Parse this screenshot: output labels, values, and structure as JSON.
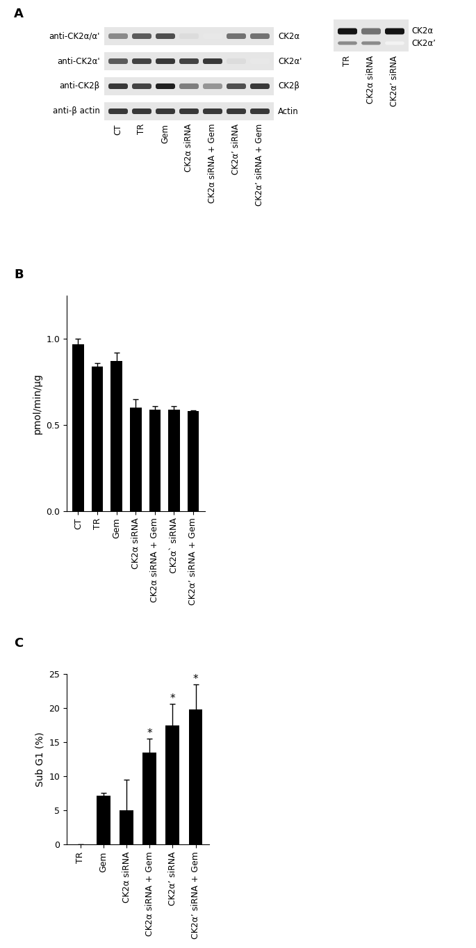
{
  "panel_labels": [
    "A",
    "B",
    "C"
  ],
  "blot_left": {
    "rows": [
      {
        "antibody": "anti-CK2α/α'",
        "band": "CK2α",
        "intensity": [
          0.5,
          0.7,
          0.75,
          0.15,
          0.1,
          0.6,
          0.6
        ]
      },
      {
        "antibody": "anti-CK2α'",
        "band": "CK2α'",
        "intensity": [
          0.7,
          0.8,
          0.85,
          0.8,
          0.85,
          0.15,
          0.1
        ]
      },
      {
        "antibody": "anti-CK2β",
        "band": "CK2β",
        "intensity": [
          0.85,
          0.8,
          0.95,
          0.55,
          0.45,
          0.75,
          0.85
        ]
      },
      {
        "antibody": "anti-β actin",
        "band": "Actin",
        "intensity": [
          0.85,
          0.85,
          0.85,
          0.85,
          0.85,
          0.85,
          0.85
        ]
      }
    ],
    "lanes": [
      "CT",
      "TR",
      "Gem",
      "CK2α siRNA",
      "CK2α siRNA + Gem",
      "CK2α’ siRNA",
      "CK2α’ siRNA + Gem"
    ]
  },
  "blot_right": {
    "lanes": [
      "TR",
      "CK2α siRNA",
      "CK2α’ siRNA"
    ],
    "bands": [
      {
        "band": "CK2α",
        "intensity": [
          1.0,
          0.6,
          1.0
        ]
      },
      {
        "band": "CK2α’",
        "intensity": [
          0.5,
          0.5,
          0.05
        ]
      }
    ]
  },
  "chart_data": [
    {
      "type": "bar",
      "y_label": "pmol/min/μg",
      "categories": [
        "CT",
        "TR",
        "Gem",
        "CK2α siRNA",
        "CK2α siRNA + Gem",
        "CK2α` siRNA",
        "CK2α’ siRNA + Gem"
      ],
      "values": [
        0.97,
        0.84,
        0.87,
        0.6,
        0.59,
        0.59,
        0.58
      ],
      "error": [
        0.03,
        0.02,
        0.05,
        0.05,
        0.02,
        0.02,
        0.005
      ],
      "color": "#000000",
      "ylim": [
        0,
        1.25
      ],
      "yticks": [
        {
          "value": 0,
          "label": "0.0"
        },
        {
          "value": 0.5,
          "label": "0.5"
        },
        {
          "value": 1.0,
          "label": "1.0"
        }
      ]
    },
    {
      "type": "bar",
      "y_label": "Sub G1 (%)",
      "categories": [
        "TR",
        "Gem",
        "CK2α siRNA",
        "CK2α siRNA + Gem",
        "CK2α’ siRNA",
        "CK2α’ siRNA + Gem"
      ],
      "values": [
        0,
        7.2,
        5.0,
        13.5,
        17.5,
        19.8
      ],
      "error": [
        0,
        0.4,
        4.5,
        2.0,
        3.1,
        3.7
      ],
      "significant": [
        false,
        false,
        false,
        true,
        true,
        true
      ],
      "annotation": "*",
      "color": "#000000",
      "ylim": [
        0,
        25
      ],
      "yticks": [
        0,
        5,
        10,
        15,
        20,
        25
      ]
    }
  ]
}
